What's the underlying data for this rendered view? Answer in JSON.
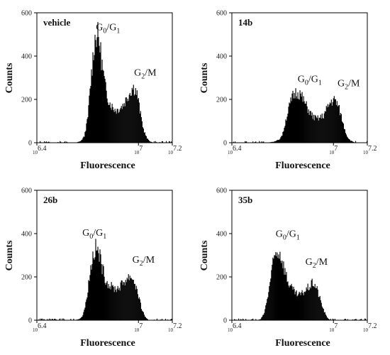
{
  "chart_data": [
    {
      "type": "histogram",
      "panel_label": "vehicle",
      "xlabel": "Fluorescence",
      "ylabel": "Counts",
      "ylim": [
        0,
        600
      ],
      "yticks": [
        "0",
        "200",
        "400",
        "600"
      ],
      "xticks": [
        {
          "base": "10",
          "exp": "6.4"
        },
        {
          "base": "10",
          "exp": "7"
        },
        {
          "base": "10",
          "exp": "7.2"
        }
      ],
      "xtick_values": [
        6.4,
        7.0,
        7.2
      ],
      "xlim": [
        6.4,
        7.2
      ],
      "annotations": [
        {
          "main": "G",
          "sub1": "0",
          "sep": "/G",
          "sub2": "1",
          "x": 6.82,
          "y": 520
        },
        {
          "main": "G",
          "sub1": "2",
          "sep": "/M",
          "sub2": "",
          "x": 7.04,
          "y": 310
        }
      ],
      "profile": [
        [
          6.63,
          0
        ],
        [
          6.66,
          8
        ],
        [
          6.68,
          30
        ],
        [
          6.7,
          110
        ],
        [
          6.72,
          300
        ],
        [
          6.74,
          470
        ],
        [
          6.755,
          505
        ],
        [
          6.77,
          460
        ],
        [
          6.79,
          330
        ],
        [
          6.81,
          230
        ],
        [
          6.83,
          185
        ],
        [
          6.85,
          160
        ],
        [
          6.87,
          150
        ],
        [
          6.89,
          160
        ],
        [
          6.91,
          175
        ],
        [
          6.93,
          205
        ],
        [
          6.95,
          235
        ],
        [
          6.965,
          255
        ],
        [
          6.98,
          250
        ],
        [
          6.995,
          215
        ],
        [
          7.01,
          140
        ],
        [
          7.03,
          60
        ],
        [
          7.05,
          20
        ],
        [
          7.07,
          5
        ],
        [
          7.09,
          0
        ]
      ]
    },
    {
      "type": "histogram",
      "panel_label": "14b",
      "xlabel": "Fluorescence",
      "ylabel": "Counts",
      "ylim": [
        0,
        600
      ],
      "yticks": [
        "0",
        "200",
        "400",
        "600"
      ],
      "xticks": [
        {
          "base": "10",
          "exp": "6.4"
        },
        {
          "base": "10",
          "exp": "7"
        },
        {
          "base": "10",
          "exp": "7.2"
        }
      ],
      "xtick_values": [
        6.4,
        7.0,
        7.2
      ],
      "xlim": [
        6.4,
        7.2
      ],
      "annotations": [
        {
          "main": "G",
          "sub1": "0",
          "sep": "/G",
          "sub2": "1",
          "x": 6.86,
          "y": 280
        },
        {
          "main": "G",
          "sub1": "2",
          "sep": "/M",
          "sub2": "",
          "x": 7.09,
          "y": 260
        }
      ],
      "profile": [
        [
          6.6,
          0
        ],
        [
          6.65,
          5
        ],
        [
          6.68,
          15
        ],
        [
          6.7,
          40
        ],
        [
          6.72,
          110
        ],
        [
          6.74,
          170
        ],
        [
          6.76,
          215
        ],
        [
          6.78,
          235
        ],
        [
          6.8,
          230
        ],
        [
          6.82,
          200
        ],
        [
          6.84,
          170
        ],
        [
          6.86,
          140
        ],
        [
          6.88,
          120
        ],
        [
          6.9,
          110
        ],
        [
          6.92,
          115
        ],
        [
          6.94,
          125
        ],
        [
          6.96,
          155
        ],
        [
          6.98,
          185
        ],
        [
          7.0,
          200
        ],
        [
          7.02,
          185
        ],
        [
          7.04,
          140
        ],
        [
          7.06,
          80
        ],
        [
          7.08,
          30
        ],
        [
          7.1,
          10
        ],
        [
          7.13,
          0
        ]
      ]
    },
    {
      "type": "histogram",
      "panel_label": "26b",
      "xlabel": "Fluorescence",
      "ylabel": "Counts",
      "ylim": [
        0,
        600
      ],
      "yticks": [
        "0",
        "200",
        "400",
        "600"
      ],
      "xticks": [
        {
          "base": "10",
          "exp": "6.4"
        },
        {
          "base": "10",
          "exp": "7"
        },
        {
          "base": "10",
          "exp": "7.2"
        }
      ],
      "xtick_values": [
        6.4,
        7.0,
        7.2
      ],
      "xlim": [
        6.4,
        7.2
      ],
      "annotations": [
        {
          "main": "G",
          "sub1": "0",
          "sep": "/G",
          "sub2": "1",
          "x": 6.74,
          "y": 390
        },
        {
          "main": "G",
          "sub1": "2",
          "sep": "/M",
          "sub2": "",
          "x": 7.03,
          "y": 265
        }
      ],
      "profile": [
        [
          6.62,
          0
        ],
        [
          6.65,
          5
        ],
        [
          6.67,
          20
        ],
        [
          6.69,
          80
        ],
        [
          6.71,
          200
        ],
        [
          6.73,
          300
        ],
        [
          6.75,
          335
        ],
        [
          6.77,
          300
        ],
        [
          6.79,
          230
        ],
        [
          6.81,
          180
        ],
        [
          6.83,
          160
        ],
        [
          6.85,
          150
        ],
        [
          6.87,
          145
        ],
        [
          6.89,
          155
        ],
        [
          6.91,
          175
        ],
        [
          6.93,
          190
        ],
        [
          6.95,
          205
        ],
        [
          6.96,
          200
        ],
        [
          6.98,
          170
        ],
        [
          7.0,
          110
        ],
        [
          7.02,
          50
        ],
        [
          7.04,
          15
        ],
        [
          7.06,
          0
        ]
      ]
    },
    {
      "type": "histogram",
      "panel_label": "35b",
      "xlabel": "Fluorescence",
      "ylabel": "Counts",
      "ylim": [
        0,
        600
      ],
      "yticks": [
        "0",
        "200",
        "400",
        "600"
      ],
      "xticks": [
        {
          "base": "10",
          "exp": "6.4"
        },
        {
          "base": "10",
          "exp": "7"
        },
        {
          "base": "10",
          "exp": "7.2"
        }
      ],
      "xtick_values": [
        6.4,
        7.0,
        7.2
      ],
      "xlim": [
        6.4,
        7.2
      ],
      "annotations": [
        {
          "main": "G",
          "sub1": "0",
          "sep": "/G",
          "sub2": "1",
          "x": 6.73,
          "y": 385
        },
        {
          "main": "G",
          "sub1": "2",
          "sep": "/M",
          "sub2": "",
          "x": 6.9,
          "y": 255
        }
      ],
      "profile": [
        [
          6.55,
          0
        ],
        [
          6.57,
          5
        ],
        [
          6.59,
          30
        ],
        [
          6.61,
          100
        ],
        [
          6.63,
          200
        ],
        [
          6.65,
          290
        ],
        [
          6.67,
          320
        ],
        [
          6.69,
          300
        ],
        [
          6.71,
          240
        ],
        [
          6.73,
          180
        ],
        [
          6.75,
          150
        ],
        [
          6.77,
          130
        ],
        [
          6.79,
          115
        ],
        [
          6.81,
          120
        ],
        [
          6.83,
          135
        ],
        [
          6.85,
          150
        ],
        [
          6.87,
          165
        ],
        [
          6.88,
          175
        ],
        [
          6.9,
          150
        ],
        [
          6.92,
          100
        ],
        [
          6.94,
          50
        ],
        [
          6.96,
          15
        ],
        [
          6.98,
          0
        ]
      ]
    }
  ]
}
